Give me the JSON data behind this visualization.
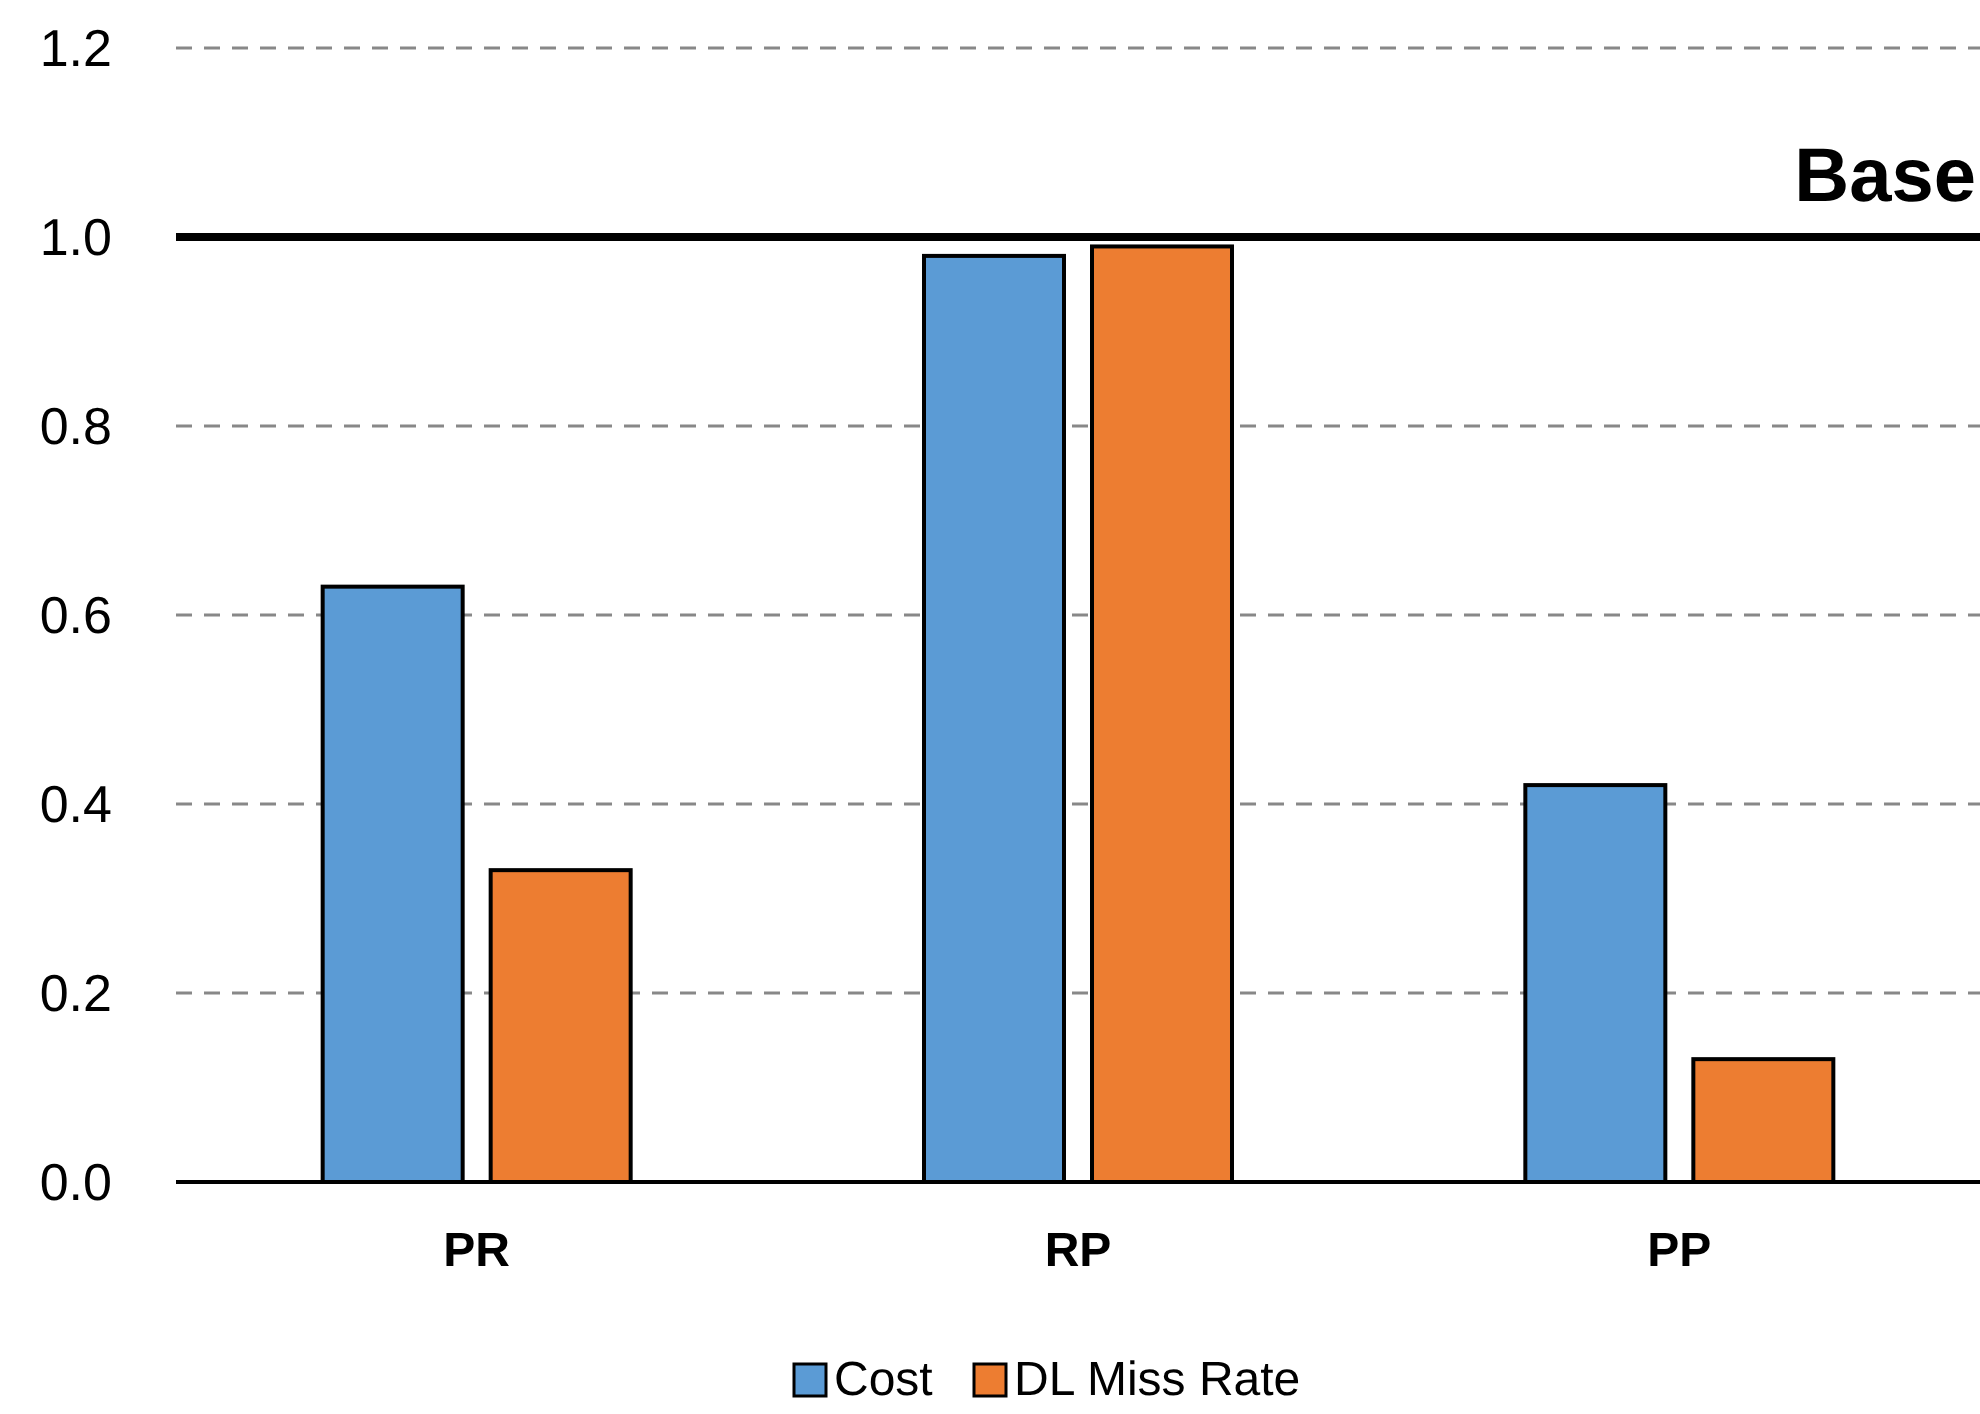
{
  "chart_data": {
    "type": "bar",
    "categories": [
      "PR",
      "RP",
      "PP"
    ],
    "series": [
      {
        "name": "Cost",
        "color": "#5b9bd5",
        "values": [
          0.63,
          0.98,
          0.42
        ]
      },
      {
        "name": "DL Miss Rate",
        "color": "#ed7d31",
        "values": [
          0.33,
          0.99,
          0.13
        ]
      }
    ],
    "ylim": [
      0,
      1.2
    ],
    "yticks": [
      {
        "value": 0,
        "label": "0.0"
      },
      0.2,
      0.4,
      0.6,
      0.8,
      {
        "value": 1,
        "label": "1.0"
      },
      1.2
    ],
    "grid": "y",
    "legend": "bottom",
    "ref_lines": [
      {
        "axis": "y",
        "value": 1.0,
        "label": "Base"
      }
    ]
  }
}
